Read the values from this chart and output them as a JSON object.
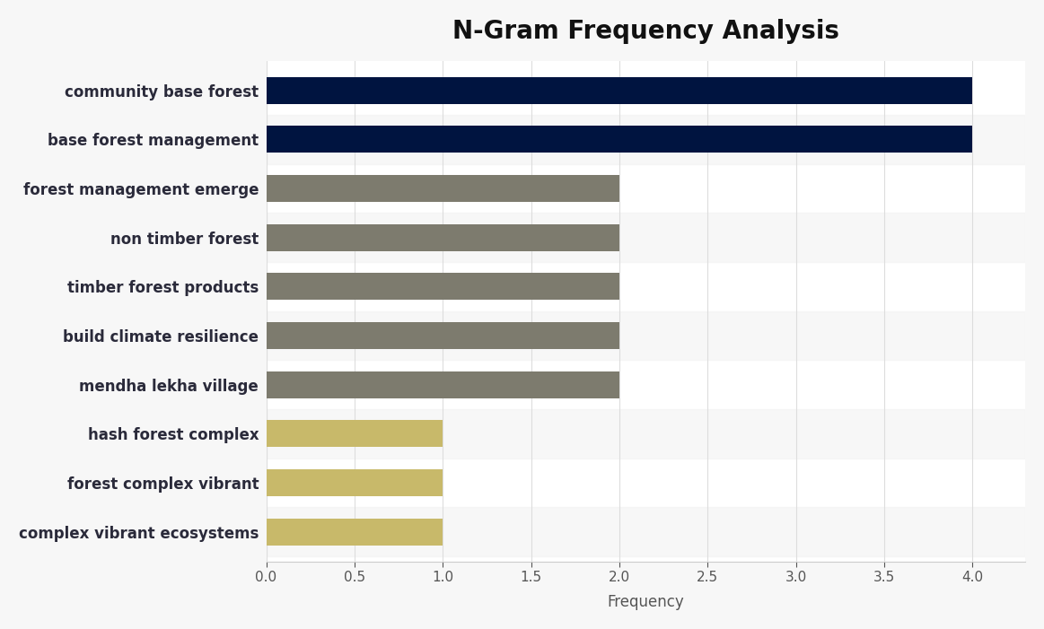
{
  "title": "N-Gram Frequency Analysis",
  "xlabel": "Frequency",
  "categories": [
    "complex vibrant ecosystems",
    "forest complex vibrant",
    "hash forest complex",
    "mendha lekha village",
    "build climate resilience",
    "timber forest products",
    "non timber forest",
    "forest management emerge",
    "base forest management",
    "community base forest"
  ],
  "values": [
    1,
    1,
    1,
    2,
    2,
    2,
    2,
    2,
    4,
    4
  ],
  "bar_colors": [
    "#c8b96a",
    "#c8b96a",
    "#c8b96a",
    "#7d7b6e",
    "#7d7b6e",
    "#7d7b6e",
    "#7d7b6e",
    "#7d7b6e",
    "#001440",
    "#001440"
  ],
  "xlim": [
    0,
    4.3
  ],
  "xticks": [
    0.0,
    0.5,
    1.0,
    1.5,
    2.0,
    2.5,
    3.0,
    3.5,
    4.0
  ],
  "background_color": "#f7f7f7",
  "plot_bg_color": "#ffffff",
  "title_fontsize": 20,
  "label_fontsize": 12,
  "tick_fontsize": 11,
  "bar_height": 0.55
}
